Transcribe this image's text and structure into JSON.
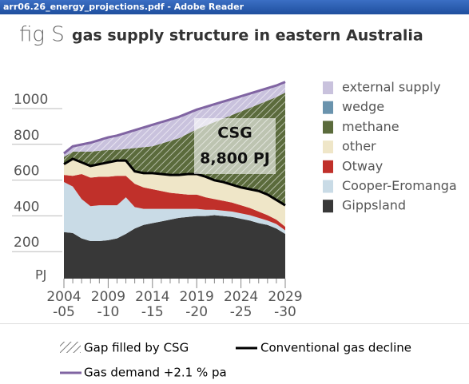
{
  "window_title": "arr06.26_energy_projections.pdf - Adobe Reader",
  "chart_data": {
    "type": "stacked-area",
    "fig_label": "fig S",
    "title": "gas supply structure in eastern Australia",
    "y_unit_label": "PJ",
    "categories": [
      "2004\n-05",
      null,
      null,
      null,
      null,
      "2009\n-10",
      null,
      null,
      null,
      null,
      "2014\n-15",
      null,
      null,
      null,
      null,
      "2019\n-20",
      null,
      null,
      null,
      null,
      "2024\n-25",
      null,
      null,
      null,
      null,
      "2029\n-30"
    ],
    "ylim": [
      0,
      1150
    ],
    "yticks": [
      200,
      400,
      600,
      800,
      1000
    ],
    "series": [
      {
        "name": "Gippsland",
        "color": "#383838",
        "values": [
          260,
          255,
          225,
          210,
          210,
          215,
          225,
          250,
          280,
          300,
          310,
          320,
          330,
          340,
          345,
          350,
          350,
          355,
          350,
          345,
          335,
          325,
          310,
          300,
          280,
          250
        ]
      },
      {
        "name": "Cooper-Eromanga",
        "color": "#c9dbe6",
        "values": [
          280,
          260,
          220,
          195,
          200,
          195,
          185,
          205,
          120,
          90,
          80,
          70,
          60,
          50,
          45,
          40,
          35,
          30,
          30,
          30,
          30,
          30,
          30,
          25,
          25,
          20
        ]
      },
      {
        "name": "Otway",
        "color": "#c0302a",
        "values": [
          40,
          60,
          140,
          160,
          160,
          160,
          165,
          120,
          130,
          120,
          110,
          100,
          90,
          85,
          80,
          80,
          70,
          60,
          55,
          50,
          45,
          40,
          35,
          30,
          25,
          20
        ]
      },
      {
        "name": "other",
        "color": "#efe6c8",
        "values": [
          60,
          95,
          65,
          65,
          70,
          80,
          85,
          85,
          70,
          80,
          90,
          95,
          100,
          105,
          115,
          115,
          115,
          105,
          105,
          100,
          100,
          105,
          115,
          115,
          110,
          120
        ]
      },
      {
        "name": "methane",
        "color": "#5b6b3c",
        "hatch": true,
        "values": [
          40,
          40,
          60,
          80,
          75,
          70,
          60,
          65,
          130,
          145,
          150,
          170,
          190,
          205,
          225,
          250,
          285,
          325,
          355,
          390,
          425,
          455,
          485,
          525,
          575,
          630
        ]
      },
      {
        "name": "wedge",
        "color": "#6a93ad",
        "values": [
          0,
          0,
          0,
          0,
          0,
          0,
          0,
          0,
          0,
          0,
          0,
          0,
          0,
          0,
          0,
          0,
          0,
          0,
          0,
          0,
          0,
          0,
          0,
          0,
          0,
          0
        ]
      },
      {
        "name": "external supply",
        "color": "#c9c2dd",
        "hatch": true,
        "values": [
          20,
          30,
          40,
          50,
          60,
          70,
          80,
          90,
          100,
          110,
          120,
          120,
          120,
          120,
          115,
          110,
          105,
          100,
          95,
          90,
          85,
          80,
          75,
          70,
          65,
          60
        ]
      }
    ],
    "lines": [
      {
        "name": "Conventional gas decline",
        "color": "#000000",
        "values": [
          640,
          670,
          650,
          630,
          640,
          650,
          660,
          660,
          600,
          590,
          590,
          585,
          580,
          580,
          585,
          585,
          570,
          550,
          540,
          525,
          510,
          500,
          490,
          470,
          440,
          410
        ]
      },
      {
        "name": "Gas demand +2.1 % pa",
        "color": "#8064a2",
        "values": [
          700,
          740,
          750,
          760,
          775,
          790,
          800,
          815,
          830,
          845,
          860,
          875,
          890,
          905,
          925,
          945,
          960,
          975,
          990,
          1005,
          1020,
          1035,
          1050,
          1065,
          1080,
          1100
        ]
      }
    ],
    "gap_label": "Gap filled by CSG",
    "annotation": {
      "lines": [
        "CSG",
        "8,800 PJ"
      ]
    }
  }
}
